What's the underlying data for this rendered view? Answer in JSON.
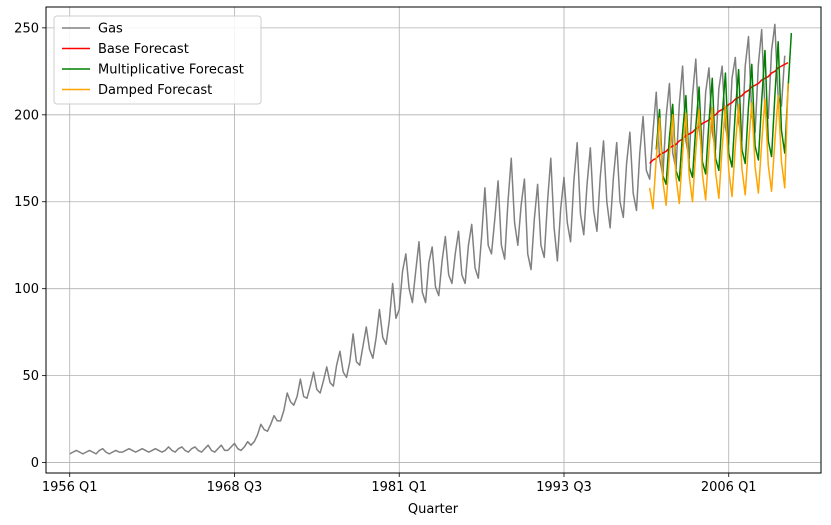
{
  "chart_data": {
    "type": "line",
    "title": "",
    "xlabel": "Quarter",
    "ylabel": "",
    "xlim": [
      1954.2,
      2013.0
    ],
    "ylim": [
      -6,
      262
    ],
    "grid": true,
    "legend_position": "top-left",
    "x_ticks": [
      {
        "value": 1956.0,
        "label": "1956 Q1"
      },
      {
        "value": 1968.5,
        "label": "1968 Q3"
      },
      {
        "value": 1981.0,
        "label": "1981 Q1"
      },
      {
        "value": 1993.5,
        "label": "1993 Q3"
      },
      {
        "value": 2006.0,
        "label": "2006 Q1"
      }
    ],
    "y_ticks": [
      0,
      50,
      100,
      150,
      200,
      250
    ],
    "series": [
      {
        "name": "Gas",
        "color": "#808080",
        "x_start": 1956.0,
        "x_step": 0.25,
        "values": [
          5,
          6,
          7,
          6,
          5,
          6,
          7,
          6,
          5,
          7,
          8,
          6,
          5,
          6,
          7,
          6,
          6,
          7,
          8,
          7,
          6,
          7,
          8,
          7,
          6,
          7,
          8,
          7,
          6,
          7,
          9,
          7,
          6,
          8,
          9,
          7,
          6,
          8,
          9,
          7,
          6,
          8,
          10,
          7,
          6,
          8,
          10,
          7,
          7,
          9,
          11,
          8,
          7,
          9,
          12,
          10,
          12,
          16,
          22,
          19,
          18,
          22,
          27,
          24,
          24,
          30,
          40,
          35,
          33,
          38,
          48,
          38,
          37,
          44,
          52,
          42,
          40,
          47,
          55,
          46,
          44,
          56,
          64,
          52,
          49,
          58,
          74,
          58,
          56,
          67,
          78,
          65,
          60,
          72,
          88,
          72,
          68,
          82,
          103,
          83,
          88,
          110,
          120,
          100,
          92,
          110,
          127,
          98,
          92,
          115,
          124,
          101,
          96,
          116,
          130,
          108,
          103,
          120,
          133,
          108,
          103,
          125,
          137,
          112,
          106,
          130,
          158,
          125,
          120,
          140,
          162,
          125,
          117,
          150,
          175,
          138,
          125,
          148,
          163,
          120,
          111,
          140,
          160,
          125,
          118,
          150,
          175,
          135,
          116,
          146,
          164,
          138,
          127,
          162,
          184,
          143,
          131,
          160,
          181,
          145,
          133,
          164,
          185,
          150,
          135,
          164,
          184,
          150,
          141,
          172,
          190,
          155,
          145,
          178,
          199,
          168,
          163,
          190,
          213,
          175,
          165,
          199,
          218,
          178,
          169,
          206,
          228,
          185,
          175,
          211,
          232,
          192,
          178,
          213,
          227,
          190,
          180,
          215,
          228,
          193,
          183,
          221,
          233,
          196,
          185,
          228,
          245,
          200,
          190,
          229,
          249,
          202,
          198,
          237,
          252,
          210,
          205,
          234
        ]
      },
      {
        "name": "Base Forecast",
        "color": "#ff0000",
        "x_start": 2000.0,
        "x_step": 0.25,
        "values": [
          172,
          174,
          175,
          177,
          178,
          179,
          181,
          182,
          183,
          185,
          186,
          188,
          189,
          190,
          192,
          193,
          195,
          196,
          197,
          199,
          200,
          202,
          203,
          204,
          206,
          207,
          209,
          210,
          211,
          213,
          214,
          216,
          217,
          218,
          220,
          221,
          222,
          224,
          225,
          227,
          228,
          229,
          230
        ]
      },
      {
        "name": "Multiplicative Forecast",
        "color": "#008000",
        "x_start": 2000.5,
        "x_step": 0.25,
        "values": [
          180,
          203,
          165,
          160,
          187,
          206,
          168,
          162,
          190,
          211,
          170,
          164,
          193,
          216,
          173,
          166,
          196,
          221,
          175,
          168,
          199,
          224,
          178,
          170,
          202,
          226,
          180,
          172,
          205,
          229,
          182,
          174,
          208,
          237,
          185,
          176,
          211,
          242,
          191,
          178,
          215,
          247
        ]
      },
      {
        "name": "Damped Forecast",
        "color": "#ffa500",
        "x_start": 2000.0,
        "x_step": 0.25,
        "values": [
          158,
          146,
          175,
          198,
          162,
          148,
          177,
          200,
          164,
          149,
          178,
          201,
          165,
          150,
          179,
          203,
          166,
          151,
          180,
          204,
          167,
          152,
          181,
          205,
          168,
          153,
          182,
          206,
          169,
          154,
          183,
          207,
          170,
          155,
          184,
          209,
          171,
          156,
          185,
          211,
          173,
          158,
          218
        ]
      }
    ]
  }
}
